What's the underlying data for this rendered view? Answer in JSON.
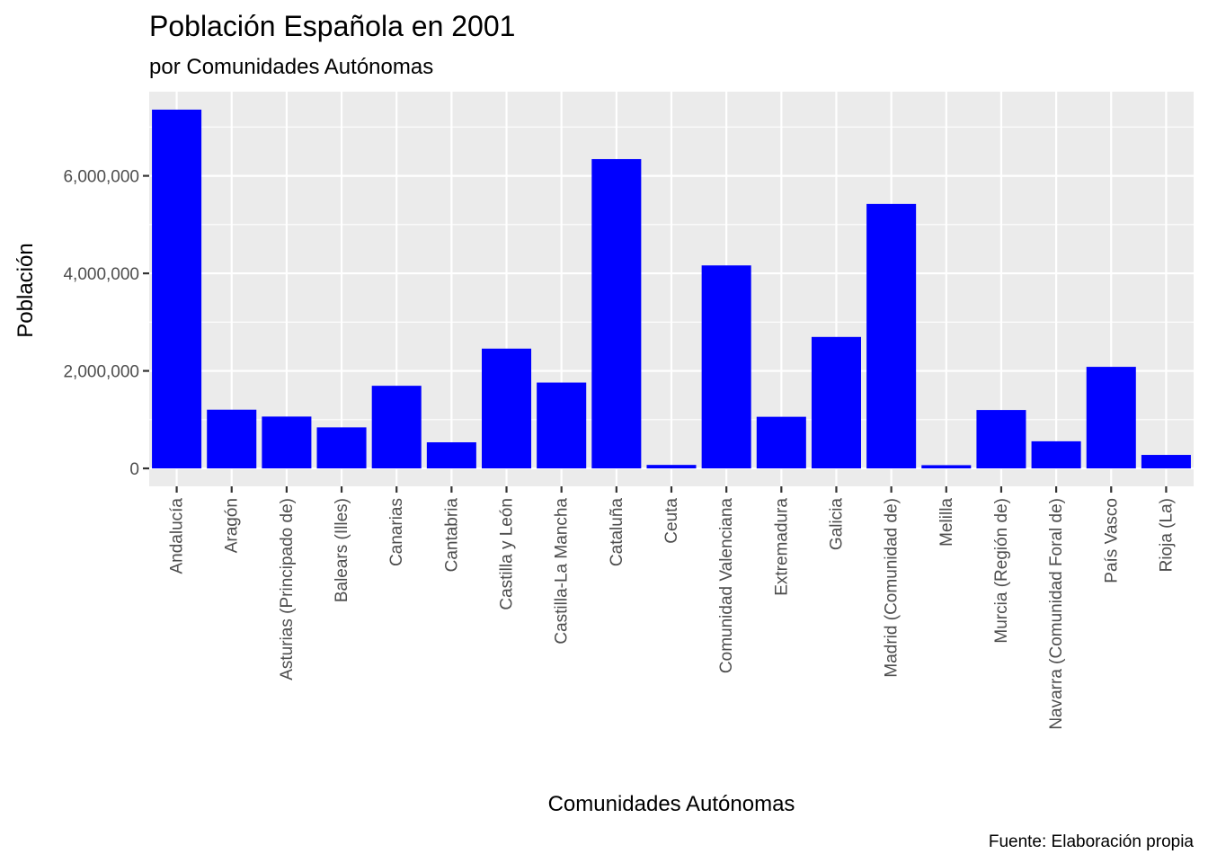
{
  "chart_data": {
    "type": "bar",
    "title": "Población Española en 2001",
    "subtitle": "por Comunidades Autónomas",
    "xlabel": "Comunidades Autónomas",
    "ylabel": "Población",
    "caption": "Fuente: Elaboración propia",
    "categories": [
      "Andalucía",
      "Aragón",
      "Asturias (Principado de)",
      "Balears (Illes)",
      "Canarias",
      "Cantabria",
      "Castilla y León",
      "Castilla-La Mancha",
      "Cataluña",
      "Ceuta",
      "Comunidad Valenciana",
      "Extremadura",
      "Galicia",
      "Madrid (Comunidad de)",
      "Melilla",
      "Murcia (Región de)",
      "Navarra (Comunidad Foral de)",
      "País Vasco",
      "Rioja (La)"
    ],
    "values": [
      7357558,
      1204215,
      1062998,
      841669,
      1694477,
      535131,
      2456474,
      1760516,
      6343110,
      71505,
      4162776,
      1058503,
      2695880,
      5423384,
      66411,
      1197646,
      555829,
      2082587,
      276702
    ],
    "yticks": [
      0,
      2000000,
      4000000,
      6000000
    ],
    "ytick_labels": [
      "0",
      "2,000,000",
      "4,000,000",
      "6,000,000"
    ],
    "ylim": [
      -367878,
      7725436
    ],
    "grid": true,
    "legend": "none",
    "bar_color": "#0000ff",
    "panel_color": "#ebebeb",
    "grid_color": "#ffffff"
  }
}
